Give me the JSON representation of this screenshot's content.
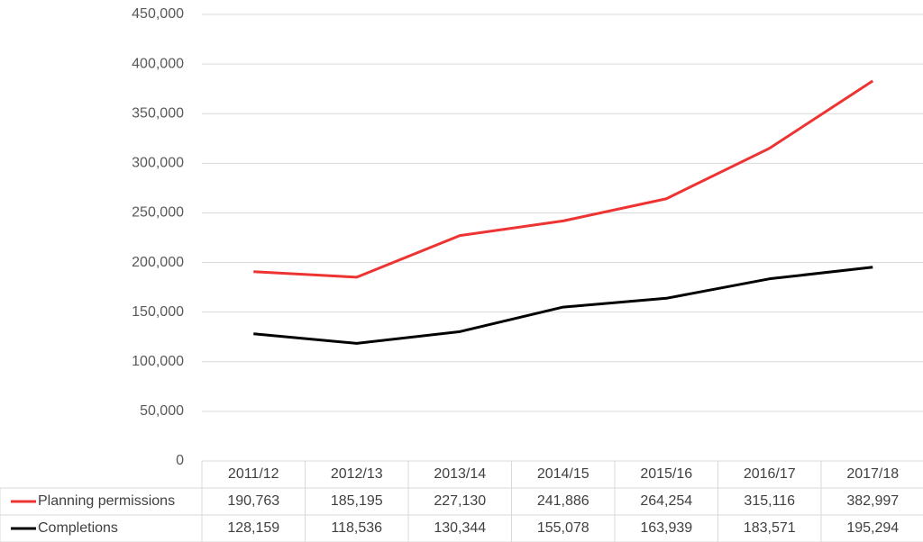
{
  "chart_data": {
    "type": "line",
    "categories": [
      "2011/12",
      "2012/13",
      "2013/14",
      "2014/15",
      "2015/16",
      "2016/17",
      "2017/18"
    ],
    "series": [
      {
        "name": "Planning permissions",
        "color": "#ee3333",
        "values": [
          190763,
          185195,
          227130,
          241886,
          264254,
          315116,
          382997
        ],
        "value_labels": [
          "190,763",
          "185,195",
          "227,130",
          "241,886",
          "264,254",
          "315,116",
          "382,997"
        ]
      },
      {
        "name": "Completions",
        "color": "#000000",
        "values": [
          128159,
          118536,
          130344,
          155078,
          163939,
          183571,
          195294
        ],
        "value_labels": [
          "128,159",
          "118,536",
          "130,344",
          "155,078",
          "163,939",
          "183,571",
          "195,294"
        ]
      }
    ],
    "ylim": [
      0,
      450000
    ],
    "yticks": [
      0,
      {
        "value": 50000,
        "label": "50,000"
      },
      {
        "value": 100000,
        "label": "100,000"
      },
      {
        "value": 150000,
        "label": "150,000"
      },
      {
        "value": 200000,
        "label": "200,000"
      },
      {
        "value": 250000,
        "label": "250,000"
      },
      {
        "value": 300000,
        "label": "300,000"
      },
      {
        "value": 350000,
        "label": "350,000"
      },
      {
        "value": 400000,
        "label": "400,000"
      },
      {
        "value": 450000,
        "label": "450,000"
      }
    ],
    "grid": true
  }
}
